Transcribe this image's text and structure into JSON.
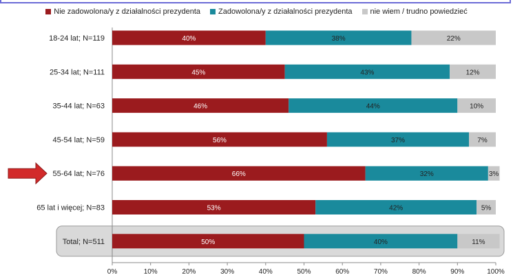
{
  "chart_data": {
    "type": "bar",
    "orientation": "horizontal",
    "stacked": true,
    "categories": [
      "18-24 lat; N=119",
      "25-34 lat; N=111",
      "35-44 lat; N=63",
      "45-54 lat; N=59",
      "55-64 lat; N=76",
      "65 lat i więcej; N=83",
      "Total; N=511"
    ],
    "series": [
      {
        "name": "Nie zadowolona/y z działalności prezydenta",
        "color": "#9b1b1e",
        "values": [
          40,
          45,
          46,
          56,
          66,
          53,
          50
        ],
        "labels": [
          "40%",
          "45%",
          "46%",
          "56%",
          "66%",
          "53%",
          "50%"
        ]
      },
      {
        "name": "Zadowolona/y z działalności prezydenta",
        "color": "#1a8a9c",
        "values": [
          38,
          43,
          44,
          37,
          32,
          42,
          40
        ],
        "labels": [
          "38%",
          "43%",
          "44%",
          "37%",
          "32%",
          "42%",
          "40%"
        ]
      },
      {
        "name": "nie wiem / trudno powiedzieć",
        "color": "#c8c8c8",
        "values": [
          22,
          12,
          10,
          7,
          3,
          5,
          11
        ],
        "labels": [
          "22%",
          "12%",
          "10%",
          "7%",
          "3%",
          "5%",
          "11%"
        ]
      }
    ],
    "xlim": [
      0,
      100
    ],
    "x_ticks": [
      "0%",
      "10%",
      "20%",
      "30%",
      "40%",
      "50%",
      "60%",
      "70%",
      "80%",
      "90%",
      "100%"
    ],
    "grid": false,
    "legend_position": "top",
    "highlighted_category": "55-64 lat; N=76",
    "highlighted_total": "Total; N=511",
    "arrow_color": "#d22a2a"
  }
}
